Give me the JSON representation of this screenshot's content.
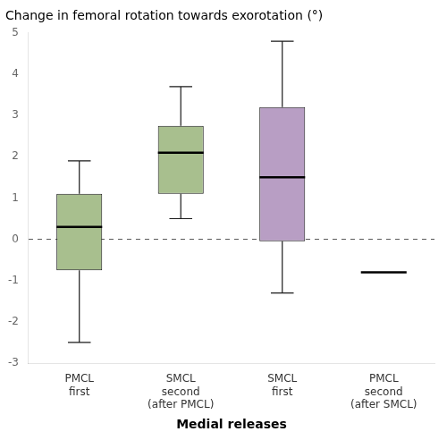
{
  "chart_data": {
    "type": "box",
    "title": "Change in femoral rotation towards exorotation (°)",
    "xlabel": "Medial releases",
    "categories": [
      "PMCL\nfirst",
      "SMCL\nsecond\n(after PMCL)",
      "SMCL\nfirst",
      "PMCL\nsecond\n(after SMCL)"
    ],
    "min": [
      -2.5,
      0.5,
      -1.3,
      null
    ],
    "q1": [
      -0.75,
      1.1,
      -0.05,
      null
    ],
    "median": [
      0.3,
      2.1,
      1.5,
      -0.8
    ],
    "q3": [
      1.1,
      2.75,
      3.2,
      null
    ],
    "max": [
      1.9,
      3.7,
      4.8,
      null
    ],
    "colors": [
      "#a8bf8e",
      "#a8bf8e",
      "#b89ec4",
      "#b89ec4"
    ],
    "reference_line": 0,
    "ylim": [
      -3,
      5
    ],
    "yticks": [
      -3,
      -2,
      -1,
      0,
      1,
      2,
      3,
      4,
      5
    ],
    "grid": false
  }
}
